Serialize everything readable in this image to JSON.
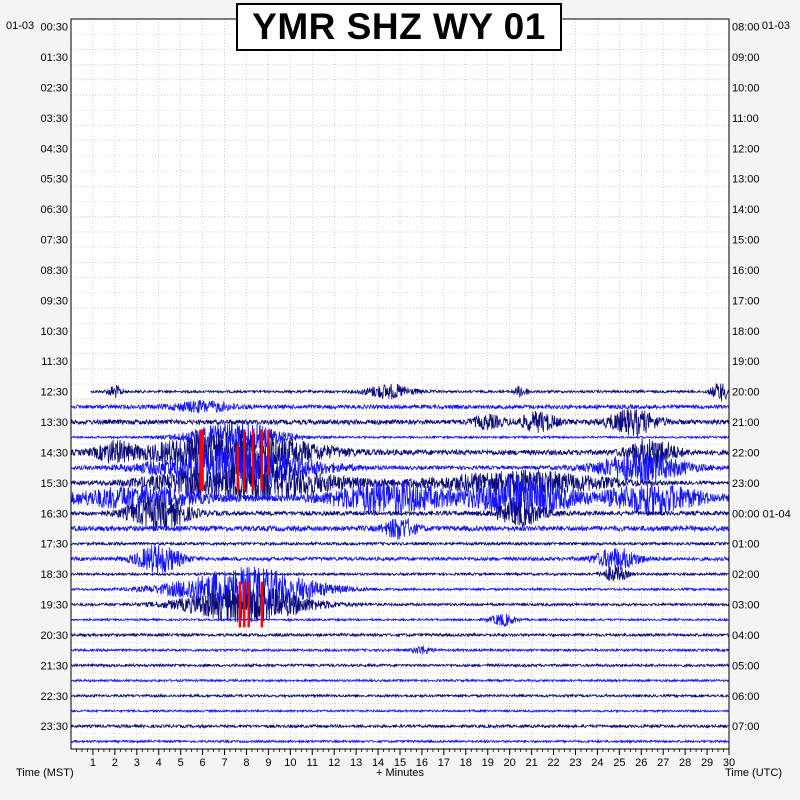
{
  "title": "YMR SHZ WY 01",
  "left_date": "01-03",
  "right_date": "01-03",
  "xlabel": "+ Minutes",
  "left_axis_label": "Time (MST)",
  "right_axis_label": "Time (UTC)",
  "colors": {
    "background": "#f4f4f4",
    "plot_bg": "#ffffff",
    "grid": "#b0b0b0",
    "trace_dark": "#0a0a78",
    "trace_blue": "#1414ff",
    "clip": "#ff0000"
  },
  "chart_data": {
    "type": "line",
    "title": "YMR SHZ WY 01",
    "xlabel": "+ Minutes",
    "x_ticks": [
      "1",
      "2",
      "3",
      "4",
      "5",
      "6",
      "7",
      "8",
      "9",
      "10",
      "11",
      "12",
      "13",
      "14",
      "15",
      "16",
      "17",
      "18",
      "19",
      "20",
      "21",
      "22",
      "23",
      "24",
      "25",
      "26",
      "27",
      "28",
      "29",
      "30"
    ],
    "xlim": [
      0,
      30
    ],
    "left_ticks": [
      "00:30",
      "01:30",
      "02:30",
      "03:30",
      "04:30",
      "05:30",
      "06:30",
      "07:30",
      "08:30",
      "09:30",
      "10:30",
      "11:30",
      "12:30",
      "13:30",
      "14:30",
      "15:30",
      "16:30",
      "17:30",
      "18:30",
      "19:30",
      "20:30",
      "21:30",
      "22:30",
      "23:30"
    ],
    "right_ticks": [
      "08:00",
      "09:00",
      "10:00",
      "11:00",
      "12:00",
      "13:00",
      "14:00",
      "15:00",
      "16:00",
      "17:00",
      "18:00",
      "19:00",
      "20:00",
      "21:00",
      "22:00",
      "23:00",
      "00:00 01-04",
      "01:00",
      "02:00",
      "03:00",
      "04:00",
      "05:00",
      "06:00",
      "07:00"
    ],
    "rows_per_hour": 2,
    "first_trace_row": 24,
    "row_amplitude": [
      1.2,
      2.0,
      2.4,
      1.0,
      2.6,
      1.8,
      1.4,
      3.2,
      2.2,
      2.6,
      1.4,
      1.8,
      1.2,
      1.1,
      1.3,
      1.0,
      1.4,
      1.2,
      1.3,
      1.1,
      1.2,
      1.0,
      1.4,
      1.1
    ],
    "events": [
      {
        "row": 24,
        "minute": 2.0,
        "amp": 6,
        "dur": 0.5
      },
      {
        "row": 24,
        "minute": 14.5,
        "amp": 7,
        "dur": 1.6
      },
      {
        "row": 24,
        "minute": 20.5,
        "amp": 5,
        "dur": 0.5
      },
      {
        "row": 24,
        "minute": 29.6,
        "amp": 9,
        "dur": 0.6
      },
      {
        "row": 25,
        "minute": 6.0,
        "amp": 5,
        "dur": 2.0
      },
      {
        "row": 26,
        "minute": 19.0,
        "amp": 6,
        "dur": 1.0
      },
      {
        "row": 26,
        "minute": 21.3,
        "amp": 9,
        "dur": 1.2
      },
      {
        "row": 26,
        "minute": 25.6,
        "amp": 12,
        "dur": 1.6
      },
      {
        "row": 27,
        "minute": 7.5,
        "amp": 16,
        "dur": 3.0
      },
      {
        "row": 28,
        "minute": 2.0,
        "amp": 9,
        "dur": 1.2
      },
      {
        "row": 28,
        "minute": 7.5,
        "amp": 22,
        "dur": 5.0
      },
      {
        "row": 28,
        "minute": 26.5,
        "amp": 14,
        "dur": 1.5
      },
      {
        "row": 29,
        "minute": 7.5,
        "amp": 20,
        "dur": 5.0
      },
      {
        "row": 29,
        "minute": 26.0,
        "amp": 14,
        "dur": 3.0
      },
      {
        "row": 30,
        "minute": 8.0,
        "amp": 18,
        "dur": 6.0
      },
      {
        "row": 30,
        "minute": 20.5,
        "amp": 12,
        "dur": 6.0
      },
      {
        "row": 31,
        "minute": 3.0,
        "amp": 10,
        "dur": 4.0
      },
      {
        "row": 31,
        "minute": 14.5,
        "amp": 16,
        "dur": 3.5
      },
      {
        "row": 31,
        "minute": 20.5,
        "amp": 22,
        "dur": 3.0
      },
      {
        "row": 31,
        "minute": 26.5,
        "amp": 14,
        "dur": 3.0
      },
      {
        "row": 32,
        "minute": 4.0,
        "amp": 16,
        "dur": 2.0
      },
      {
        "row": 32,
        "minute": 20.5,
        "amp": 12,
        "dur": 1.5
      },
      {
        "row": 33,
        "minute": 15.0,
        "amp": 10,
        "dur": 1.0
      },
      {
        "row": 35,
        "minute": 4.0,
        "amp": 14,
        "dur": 1.5
      },
      {
        "row": 35,
        "minute": 24.9,
        "amp": 10,
        "dur": 1.5
      },
      {
        "row": 36,
        "minute": 24.8,
        "amp": 8,
        "dur": 0.8
      },
      {
        "row": 37,
        "minute": 8.0,
        "amp": 22,
        "dur": 4.5
      },
      {
        "row": 38,
        "minute": 8.0,
        "amp": 18,
        "dur": 4.0
      },
      {
        "row": 39,
        "minute": 19.7,
        "amp": 6,
        "dur": 0.8
      },
      {
        "row": 41,
        "minute": 16.0,
        "amp": 4,
        "dur": 0.6
      }
    ],
    "clipped_spikes": [
      {
        "minute": 5.9,
        "row_from": 27,
        "row_to": 30
      },
      {
        "minute": 6.0,
        "row_from": 27,
        "row_to": 30
      },
      {
        "minute": 7.6,
        "row_from": 28,
        "row_to": 30
      },
      {
        "minute": 7.9,
        "row_from": 27,
        "row_to": 30
      },
      {
        "minute": 8.3,
        "row_from": 27,
        "row_to": 30
      },
      {
        "minute": 8.7,
        "row_from": 27,
        "row_to": 30
      },
      {
        "minute": 9.0,
        "row_from": 27,
        "row_to": 29
      },
      {
        "minute": 7.7,
        "row_from": 37,
        "row_to": 39
      },
      {
        "minute": 7.9,
        "row_from": 37,
        "row_to": 39
      },
      {
        "minute": 8.1,
        "row_from": 37,
        "row_to": 39
      },
      {
        "minute": 8.7,
        "row_from": 37,
        "row_to": 39
      }
    ]
  }
}
